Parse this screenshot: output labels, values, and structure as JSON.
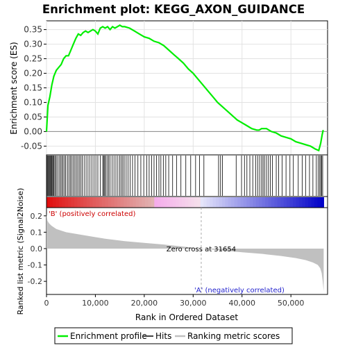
{
  "chart_data": {
    "type": "line",
    "title": "Enrichment plot: KEGG_AXON_GUIDANCE",
    "top_panel": {
      "ylabel": "Enrichment score (ES)",
      "ylim": [
        -0.08,
        0.38
      ],
      "yticks": [
        -0.05,
        0.0,
        0.05,
        0.1,
        0.15,
        0.2,
        0.25,
        0.3,
        0.35
      ],
      "ytick_labels": [
        "-0.05",
        "0.00",
        "0.05",
        "0.10",
        "0.15",
        "0.20",
        "0.25",
        "0.30",
        "0.35"
      ],
      "grid": true,
      "series": [
        {
          "name": "Enrichment profile",
          "color": "#00ee00",
          "x": [
            0,
            300,
            700,
            1100,
            1500,
            2000,
            2500,
            3000,
            3500,
            4000,
            4500,
            5000,
            5500,
            6000,
            6500,
            7000,
            7500,
            8000,
            8500,
            9000,
            9500,
            10000,
            10500,
            11000,
            11500,
            12000,
            12500,
            13000,
            13500,
            14000,
            14500,
            15000,
            15500,
            16000,
            17000,
            18000,
            19000,
            20000,
            21000,
            22000,
            23000,
            24000,
            25000,
            26000,
            27000,
            28000,
            29000,
            30000,
            31000,
            32000,
            33000,
            34000,
            35000,
            36000,
            37000,
            38000,
            39000,
            40000,
            41000,
            42000,
            43000,
            43500,
            44000,
            45000,
            46000,
            47000,
            48000,
            49000,
            50000,
            51000,
            52000,
            53000,
            54000,
            55000,
            55700,
            56100,
            56400,
            56600
          ],
          "y": [
            0.0,
            0.09,
            0.12,
            0.16,
            0.19,
            0.21,
            0.22,
            0.23,
            0.25,
            0.26,
            0.26,
            0.28,
            0.3,
            0.32,
            0.335,
            0.33,
            0.34,
            0.345,
            0.34,
            0.345,
            0.35,
            0.345,
            0.335,
            0.355,
            0.36,
            0.355,
            0.36,
            0.35,
            0.36,
            0.355,
            0.36,
            0.365,
            0.36,
            0.36,
            0.355,
            0.345,
            0.335,
            0.325,
            0.32,
            0.31,
            0.305,
            0.295,
            0.28,
            0.265,
            0.25,
            0.235,
            0.215,
            0.2,
            0.18,
            0.16,
            0.14,
            0.12,
            0.1,
            0.085,
            0.07,
            0.055,
            0.04,
            0.03,
            0.02,
            0.01,
            0.005,
            0.005,
            0.01,
            0.01,
            0.0,
            -0.005,
            -0.015,
            -0.02,
            -0.025,
            -0.035,
            -0.04,
            -0.045,
            -0.05,
            -0.06,
            -0.065,
            -0.04,
            -0.01,
            0.005
          ]
        }
      ]
    },
    "hits_panel": {
      "name": "Hits",
      "hit_positions": [
        150,
        300,
        450,
        600,
        750,
        900,
        1050,
        1250,
        1400,
        1550,
        1800,
        2000,
        2300,
        2600,
        2900,
        3150,
        3400,
        3700,
        3950,
        4300,
        4600,
        4900,
        5200,
        5500,
        5800,
        6100,
        6400,
        6700,
        7000,
        7300,
        7700,
        8100,
        8500,
        8900,
        9300,
        9700,
        10100,
        10500,
        11000,
        11500,
        11700,
        11900,
        12100,
        12400,
        12700,
        13000,
        13400,
        13800,
        14200,
        14600,
        15000,
        15300,
        15600,
        15900,
        16300,
        16700,
        17100,
        17600,
        18100,
        18700,
        19300,
        19900,
        20500,
        21000,
        21500,
        22000,
        22500,
        23000,
        23400,
        23900,
        24400,
        25000,
        25800,
        26600,
        27500,
        28500,
        29500,
        30500,
        31300,
        32200,
        35200,
        35600,
        36000,
        38800,
        39900,
        40500,
        41000,
        41600,
        42200,
        42800,
        43200,
        43600,
        44000,
        44300,
        44600,
        45000,
        45400,
        45800,
        46200,
        47000,
        47500,
        48200,
        49000,
        49800,
        50500,
        51500,
        52300,
        53000,
        53800,
        54500,
        55200,
        55600,
        55900,
        56100,
        56300,
        56500
      ]
    },
    "ranked_list_panel": {
      "ylabel": "Ranked list metric (Signal2Noise)",
      "ylim": [
        -0.28,
        0.25
      ],
      "yticks": [
        -0.2,
        -0.1,
        0.0,
        0.1,
        0.2
      ],
      "ytick_labels": [
        "-0.2",
        "-0.1",
        "0.0",
        "0.1",
        "0.2"
      ],
      "color": "#c0c0c0",
      "x": [
        0,
        200,
        500,
        1000,
        2000,
        4000,
        8000,
        12000,
        16000,
        20000,
        24000,
        28000,
        31654,
        36000,
        40000,
        44000,
        48000,
        51000,
        53000,
        54500,
        55500,
        56000,
        56300,
        56500,
        56700
      ],
      "y": [
        0.21,
        0.17,
        0.155,
        0.14,
        0.12,
        0.1,
        0.08,
        0.06,
        0.045,
        0.035,
        0.025,
        0.012,
        0.0,
        -0.012,
        -0.022,
        -0.032,
        -0.045,
        -0.058,
        -0.07,
        -0.085,
        -0.1,
        -0.12,
        -0.15,
        -0.2,
        -0.26
      ],
      "zero_cross_label": "Zero cross at 31654",
      "zero_cross_rank": 31654,
      "pos_label": "'B' (positively correlated)",
      "neg_label": "'A' (negatively correlated)"
    },
    "xlabel": "Rank in Ordered Dataset",
    "xlim": [
      0,
      57500
    ],
    "xticks": [
      0,
      10000,
      20000,
      30000,
      40000,
      50000
    ],
    "xtick_labels": [
      "0",
      "10,000",
      "20,000",
      "30,000",
      "40,000",
      "50,000"
    ],
    "legend": {
      "placement": "bottom",
      "entries": [
        {
          "label": "Enrichment profile",
          "color": "#00ee00"
        },
        {
          "label": "Hits",
          "color": "#444444"
        },
        {
          "label": "Ranking metric scores",
          "color": "#c0c0c0"
        }
      ]
    }
  }
}
